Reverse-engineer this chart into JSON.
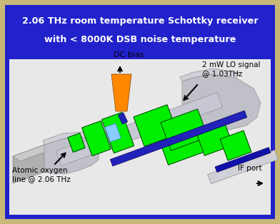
{
  "title_line1": "2.06 THz room temperature Schottky receiver",
  "title_line2": "with < 8000K DSB noise temperature",
  "title_bg_color": "#2222cc",
  "title_text_color": "#ffffff",
  "outer_border_color": "#c8b878",
  "inner_border_color": "#2222cc",
  "diagram_bg_color": "#e8e8e8",
  "label_dc_bias": "DC bias",
  "label_lo_signal": "2 mW LO signal\n@ 1.03THz",
  "label_atomic": "Atomic oxygen\nline @ 2.06 THz",
  "label_if_port": "IF port",
  "green_color": "#00ee00",
  "blue_color": "#2222bb",
  "blue_dark": "#1111aa",
  "orange_color": "#ff8800",
  "light_blue_color": "#88ccff",
  "gray_light": "#cccccc",
  "gray_mid": "#aaaaaa",
  "gray_dark": "#888888",
  "gray_body": "#b8bcc8"
}
